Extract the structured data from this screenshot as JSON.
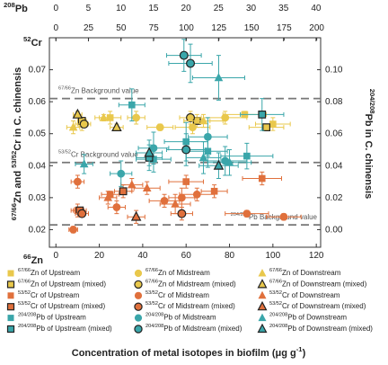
{
  "chart_data": {
    "type": "scatter",
    "xlabel": "Concentration of metal isotopes in biofilm (μg g-1)",
    "ylabel": "67/66Zn and 53/52Cr in C. chinensis",
    "y2label": "204/208Pb in C. chinensis",
    "x2_label": "208Pb",
    "y_top_label": "52Cr",
    "y_bottom_label": "66Zn",
    "xlim": [
      -3,
      122
    ],
    "xticks": [
      0,
      20,
      40,
      60,
      80,
      100,
      120
    ],
    "x2lim": [
      -1,
      40.7
    ],
    "x2ticks": [
      0,
      5,
      10,
      15,
      20,
      25,
      30,
      35,
      40
    ],
    "x3lim": [
      -5,
      203
    ],
    "x3ticks": [
      0,
      25,
      50,
      75,
      100,
      125,
      150,
      175,
      200
    ],
    "ylim": [
      0.0145,
      0.08
    ],
    "yticks": [
      0.02,
      0.03,
      0.04,
      0.05,
      0.06,
      0.07
    ],
    "y2lim": [
      -0.011,
      0.12
    ],
    "y2ticks": [
      {
        "value": 0,
        "label": "0.00"
      },
      0.02,
      0.04,
      0.06,
      0.08,
      {
        "value": 0.1,
        "label": "0.10"
      }
    ],
    "background_lines": [
      {
        "label": "67/66Zn Background value",
        "value": 0.061,
        "axis": "y"
      },
      {
        "label": "53/52Cr Background value",
        "value": 0.041,
        "axis": "y"
      },
      {
        "label": "204/208Pb Background value",
        "value": 0.003,
        "axis": "y2"
      }
    ],
    "series": [
      {
        "name": "67/66Zn of Upstream",
        "color": "#e9c84c",
        "marker": "square",
        "edge": "none",
        "axis": "y",
        "x": [
          12,
          25,
          87,
          100
        ],
        "values": [
          0.053,
          0.055,
          0.056,
          0.053
        ],
        "xerr": [
          3,
          5,
          10,
          8
        ],
        "yerr": [
          0.002,
          0.002,
          0.001,
          0.002
        ]
      },
      {
        "name": "67/66Zn of Upstream (mixed)",
        "color": "#e9c84c",
        "marker": "square",
        "edge": "#222",
        "axis": "y",
        "x": [
          12,
          65,
          97
        ],
        "values": [
          0.054,
          0.054,
          0.052
        ],
        "xerr": [
          2,
          6,
          8
        ],
        "yerr": [
          0.001,
          0.002,
          0.001
        ]
      },
      {
        "name": "67/66Zn of Midstream",
        "color": "#e9c84c",
        "marker": "circle",
        "edge": "none",
        "axis": "y",
        "x": [
          37,
          48,
          63,
          78
        ],
        "values": [
          0.055,
          0.052,
          0.052,
          0.055
        ],
        "xerr": [
          4,
          6,
          8,
          10
        ],
        "yerr": [
          0.002,
          0.001,
          0.002,
          0.002
        ]
      },
      {
        "name": "67/66Zn of Midstream (mixed)",
        "color": "#e9c84c",
        "marker": "circle",
        "edge": "#222",
        "axis": "y",
        "x": [
          13,
          62
        ],
        "values": [
          0.053,
          0.055
        ],
        "xerr": [
          3,
          5
        ],
        "yerr": [
          0.001,
          0.002
        ]
      },
      {
        "name": "67/66Zn of Downstream",
        "color": "#e9c84c",
        "marker": "triangle",
        "edge": "none",
        "axis": "y",
        "x": [
          8,
          22,
          68
        ],
        "values": [
          0.052,
          0.055,
          0.054
        ],
        "xerr": [
          3,
          4,
          9
        ],
        "yerr": [
          0.002,
          0.001,
          0.002
        ]
      },
      {
        "name": "67/66Zn of Downstream (mixed)",
        "color": "#e9c84c",
        "marker": "triangle",
        "edge": "#222",
        "axis": "y",
        "x": [
          10,
          28
        ],
        "values": [
          0.056,
          0.052
        ],
        "xerr": [
          2,
          3
        ],
        "yerr": [
          0.001,
          0.001
        ]
      },
      {
        "name": "53/52Cr of Upstream",
        "color": "#e0703c",
        "marker": "square",
        "edge": "none",
        "axis": "y",
        "x": [
          10,
          25,
          60,
          73,
          95
        ],
        "values": [
          0.026,
          0.031,
          0.035,
          0.032,
          0.036
        ],
        "xerr": [
          3,
          4,
          8,
          6,
          9
        ],
        "yerr": [
          0.002,
          0.001,
          0.002,
          0.002,
          0.002
        ]
      },
      {
        "name": "53/52Cr of Upstream (mixed)",
        "color": "#e0703c",
        "marker": "square",
        "edge": "#222",
        "axis": "y",
        "x": [
          11,
          31
        ],
        "values": [
          0.026,
          0.032
        ],
        "xerr": [
          3,
          4
        ],
        "yerr": [
          0.001,
          0.002
        ]
      },
      {
        "name": "53/52Cr of Midstream",
        "color": "#e0703c",
        "marker": "circle",
        "edge": "none",
        "axis": "y",
        "x": [
          8,
          10,
          28,
          50,
          58,
          65,
          88,
          105
        ],
        "values": [
          0.02,
          0.035,
          0.027,
          0.029,
          0.03,
          0.031,
          0.025,
          0.024
        ],
        "xerr": [
          2,
          3,
          4,
          7,
          6,
          8,
          10,
          8
        ],
        "yerr": [
          0.001,
          0.002,
          0.002,
          0.002,
          0.003,
          0.002,
          0.001,
          0.001
        ]
      },
      {
        "name": "53/52Cr of Midstream (mixed)",
        "color": "#e0703c",
        "marker": "circle",
        "edge": "#222",
        "axis": "y",
        "x": [
          12,
          58
        ],
        "values": [
          0.025,
          0.025
        ],
        "xerr": [
          3,
          5
        ],
        "yerr": [
          0.001,
          0.002
        ]
      },
      {
        "name": "53/52Cr of Downstream",
        "color": "#e0703c",
        "marker": "triangle",
        "edge": "none",
        "axis": "y",
        "x": [
          24,
          35,
          42,
          55
        ],
        "values": [
          0.03,
          0.034,
          0.033,
          0.028
        ],
        "xerr": [
          4,
          5,
          6,
          7
        ],
        "yerr": [
          0.002,
          0.002,
          0.002,
          0.003
        ]
      },
      {
        "name": "53/52Cr of Downstream (mixed)",
        "color": "#e0703c",
        "marker": "triangle",
        "edge": "#222",
        "axis": "y",
        "x": [
          37
        ],
        "values": [
          0.024
        ],
        "xerr": [
          4
        ],
        "yerr": [
          0.002
        ]
      },
      {
        "name": "204/208Pb of Upstream",
        "color": "#3aa6aa",
        "marker": "square",
        "edge": "none",
        "axis": "y2",
        "x": [
          35,
          45,
          60,
          70,
          88
        ],
        "values": [
          0.078,
          0.044,
          0.055,
          0.049,
          0.046
        ],
        "xerr": [
          6,
          8,
          10,
          9,
          12
        ],
        "yerr": [
          0.01,
          0.008,
          0.012,
          0.01,
          0.008
        ]
      },
      {
        "name": "204/208Pb of Upstream (mixed)",
        "color": "#3aa6aa",
        "marker": "square",
        "edge": "#222",
        "axis": "y2",
        "x": [
          43,
          95
        ],
        "values": [
          0.045,
          0.072
        ],
        "xerr": [
          6,
          10
        ],
        "yerr": [
          0.008,
          0.01
        ]
      },
      {
        "name": "204/208Pb of Midstream",
        "color": "#3aa6aa",
        "marker": "circle",
        "edge": "none",
        "axis": "y2",
        "x": [
          30,
          45,
          70,
          78
        ],
        "values": [
          0.035,
          0.051,
          0.058,
          0.043
        ],
        "xerr": [
          5,
          7,
          9,
          10
        ],
        "yerr": [
          0.008,
          0.01,
          0.012,
          0.009
        ]
      },
      {
        "name": "204/208Pb of Midstream (mixed)",
        "color": "#3aa6aa",
        "marker": "circle",
        "edge": "#222",
        "axis": "y2",
        "x": [
          59,
          62,
          60
        ],
        "values": [
          0.109,
          0.104,
          0.05
        ],
        "xerr": [
          8,
          10,
          9
        ],
        "yerr": [
          0.01,
          0.012,
          0.01
        ]
      },
      {
        "name": "204/208Pb of Downstream",
        "color": "#3aa6aa",
        "marker": "triangle",
        "edge": "none",
        "axis": "y2",
        "x": [
          13,
          68,
          75,
          80
        ],
        "values": [
          0.041,
          0.045,
          0.095,
          0.042
        ],
        "xerr": [
          4,
          8,
          12,
          10
        ],
        "yerr": [
          0.006,
          0.01,
          0.014,
          0.008
        ]
      },
      {
        "name": "204/208Pb of Downstream (mixed)",
        "color": "#3aa6aa",
        "marker": "triangle",
        "edge": "#222",
        "axis": "y2",
        "x": [
          43,
          75
        ],
        "values": [
          0.048,
          0.04
        ],
        "xerr": [
          6,
          9
        ],
        "yerr": [
          0.008,
          0.008
        ]
      }
    ]
  }
}
